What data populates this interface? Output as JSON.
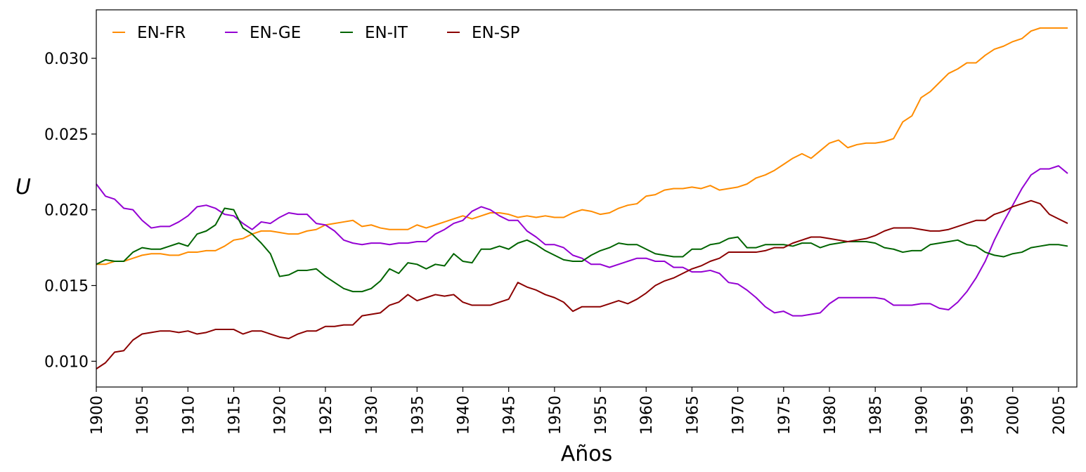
{
  "chart_data": {
    "type": "line",
    "title": "",
    "xlabel": "Años",
    "ylabel": "U",
    "xlim": [
      1900,
      2007
    ],
    "ylim": [
      0.0083,
      0.0332
    ],
    "x_ticks": [
      1900,
      1905,
      1910,
      1915,
      1920,
      1925,
      1930,
      1935,
      1940,
      1945,
      1950,
      1955,
      1960,
      1965,
      1970,
      1975,
      1980,
      1985,
      1990,
      1995,
      2000,
      2005
    ],
    "y_ticks": [
      0.01,
      0.015,
      0.02,
      0.025,
      0.03
    ],
    "y_tick_labels": [
      "0.010",
      "0.015",
      "0.020",
      "0.025",
      "0.030"
    ],
    "grid": false,
    "legend_position": "top-left",
    "x_start": 1900,
    "x_step": 1,
    "series": [
      {
        "name": "EN-FR",
        "color": "#ff8c00",
        "values": [
          0.0164,
          0.0164,
          0.0166,
          0.0166,
          0.0168,
          0.017,
          0.0171,
          0.0171,
          0.017,
          0.017,
          0.0172,
          0.0172,
          0.0173,
          0.0173,
          0.0176,
          0.018,
          0.0181,
          0.0184,
          0.0186,
          0.0186,
          0.0185,
          0.0184,
          0.0184,
          0.0186,
          0.0187,
          0.019,
          0.0191,
          0.0192,
          0.0193,
          0.0189,
          0.019,
          0.0188,
          0.0187,
          0.0187,
          0.0187,
          0.019,
          0.0188,
          0.019,
          0.0192,
          0.0194,
          0.0196,
          0.0194,
          0.0196,
          0.0198,
          0.0198,
          0.0197,
          0.0195,
          0.0196,
          0.0195,
          0.0196,
          0.0195,
          0.0195,
          0.0198,
          0.02,
          0.0199,
          0.0197,
          0.0198,
          0.0201,
          0.0203,
          0.0204,
          0.0209,
          0.021,
          0.0213,
          0.0214,
          0.0214,
          0.0215,
          0.0214,
          0.0216,
          0.0213,
          0.0214,
          0.0215,
          0.0217,
          0.0221,
          0.0223,
          0.0226,
          0.023,
          0.0234,
          0.0237,
          0.0234,
          0.0239,
          0.0244,
          0.0246,
          0.0241,
          0.0243,
          0.0244,
          0.0244,
          0.0245,
          0.0247,
          0.0258,
          0.0262,
          0.0274,
          0.0278,
          0.0284,
          0.029,
          0.0293,
          0.0297,
          0.0297,
          0.0302,
          0.0306,
          0.0308,
          0.0311,
          0.0313,
          0.0318,
          0.032,
          0.032,
          0.032,
          0.032
        ]
      },
      {
        "name": "EN-GE",
        "color": "#9400d3",
        "values": [
          0.0217,
          0.0209,
          0.0207,
          0.0201,
          0.02,
          0.0193,
          0.0188,
          0.0189,
          0.0189,
          0.0192,
          0.0196,
          0.0202,
          0.0203,
          0.0201,
          0.0197,
          0.0196,
          0.0191,
          0.0187,
          0.0192,
          0.0191,
          0.0195,
          0.0198,
          0.0197,
          0.0197,
          0.0191,
          0.019,
          0.0186,
          0.018,
          0.0178,
          0.0177,
          0.0178,
          0.0178,
          0.0177,
          0.0178,
          0.0178,
          0.0179,
          0.0179,
          0.0184,
          0.0187,
          0.0191,
          0.0193,
          0.0199,
          0.0202,
          0.02,
          0.0196,
          0.0193,
          0.0193,
          0.0186,
          0.0182,
          0.0177,
          0.0177,
          0.0175,
          0.017,
          0.0168,
          0.0164,
          0.0164,
          0.0162,
          0.0164,
          0.0166,
          0.0168,
          0.0168,
          0.0166,
          0.0166,
          0.0162,
          0.0162,
          0.0159,
          0.0159,
          0.016,
          0.0158,
          0.0152,
          0.0151,
          0.0147,
          0.0142,
          0.0136,
          0.0132,
          0.0133,
          0.013,
          0.013,
          0.0131,
          0.0132,
          0.0138,
          0.0142,
          0.0142,
          0.0142,
          0.0142,
          0.0142,
          0.0141,
          0.0137,
          0.0137,
          0.0137,
          0.0138,
          0.0138,
          0.0135,
          0.0134,
          0.0139,
          0.0146,
          0.0155,
          0.0166,
          0.018,
          0.0192,
          0.0203,
          0.0214,
          0.0223,
          0.0227,
          0.0227,
          0.0229,
          0.0224
        ]
      },
      {
        "name": "EN-IT",
        "color": "#006400",
        "values": [
          0.0164,
          0.0167,
          0.0166,
          0.0166,
          0.0172,
          0.0175,
          0.0174,
          0.0174,
          0.0176,
          0.0178,
          0.0176,
          0.0184,
          0.0186,
          0.019,
          0.0201,
          0.02,
          0.0188,
          0.0184,
          0.0178,
          0.0171,
          0.0156,
          0.0157,
          0.016,
          0.016,
          0.0161,
          0.0156,
          0.0152,
          0.0148,
          0.0146,
          0.0146,
          0.0148,
          0.0153,
          0.0161,
          0.0158,
          0.0165,
          0.0164,
          0.0161,
          0.0164,
          0.0163,
          0.0171,
          0.0166,
          0.0165,
          0.0174,
          0.0174,
          0.0176,
          0.0174,
          0.0178,
          0.018,
          0.0177,
          0.0173,
          0.017,
          0.0167,
          0.0166,
          0.0166,
          0.017,
          0.0173,
          0.0175,
          0.0178,
          0.0177,
          0.0177,
          0.0174,
          0.0171,
          0.017,
          0.0169,
          0.0169,
          0.0174,
          0.0174,
          0.0177,
          0.0178,
          0.0181,
          0.0182,
          0.0175,
          0.0175,
          0.0177,
          0.0177,
          0.0177,
          0.0176,
          0.0178,
          0.0178,
          0.0175,
          0.0177,
          0.0178,
          0.0179,
          0.0179,
          0.0179,
          0.0178,
          0.0175,
          0.0174,
          0.0172,
          0.0173,
          0.0173,
          0.0177,
          0.0178,
          0.0179,
          0.018,
          0.0177,
          0.0176,
          0.0172,
          0.017,
          0.0169,
          0.0171,
          0.0172,
          0.0175,
          0.0176,
          0.0177,
          0.0177,
          0.0176
        ]
      },
      {
        "name": "EN-SP",
        "color": "#8b0000",
        "values": [
          0.0095,
          0.0099,
          0.0106,
          0.0107,
          0.0114,
          0.0118,
          0.0119,
          0.012,
          0.012,
          0.0119,
          0.012,
          0.0118,
          0.0119,
          0.0121,
          0.0121,
          0.0121,
          0.0118,
          0.012,
          0.012,
          0.0118,
          0.0116,
          0.0115,
          0.0118,
          0.012,
          0.012,
          0.0123,
          0.0123,
          0.0124,
          0.0124,
          0.013,
          0.0131,
          0.0132,
          0.0137,
          0.0139,
          0.0144,
          0.014,
          0.0142,
          0.0144,
          0.0143,
          0.0144,
          0.0139,
          0.0137,
          0.0137,
          0.0137,
          0.0139,
          0.0141,
          0.0152,
          0.0149,
          0.0147,
          0.0144,
          0.0142,
          0.0139,
          0.0133,
          0.0136,
          0.0136,
          0.0136,
          0.0138,
          0.014,
          0.0138,
          0.0141,
          0.0145,
          0.015,
          0.0153,
          0.0155,
          0.0158,
          0.0161,
          0.0163,
          0.0166,
          0.0168,
          0.0172,
          0.0172,
          0.0172,
          0.0172,
          0.0173,
          0.0175,
          0.0175,
          0.0178,
          0.018,
          0.0182,
          0.0182,
          0.0181,
          0.018,
          0.0179,
          0.018,
          0.0181,
          0.0183,
          0.0186,
          0.0188,
          0.0188,
          0.0188,
          0.0187,
          0.0186,
          0.0186,
          0.0187,
          0.0189,
          0.0191,
          0.0193,
          0.0193,
          0.0197,
          0.0199,
          0.0202,
          0.0204,
          0.0206,
          0.0204,
          0.0197,
          0.0194,
          0.0191
        ]
      }
    ]
  }
}
